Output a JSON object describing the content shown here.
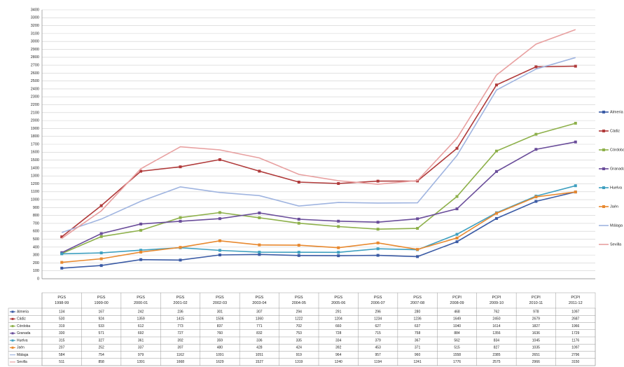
{
  "chart_data": {
    "type": "line",
    "categories": [
      "PGS 1998-99",
      "PGS 1999-00",
      "PGS 2000-01",
      "PGS 2001-02",
      "PGS 2002-03",
      "PGS 2003-04",
      "PGS 2004-05",
      "PGS 2005-06",
      "PGS 2006-07",
      "PGS 2007-08",
      "PCPI 2008-09",
      "PCPI 2009-10",
      "PCPI 2010-11",
      "PCPI 2011-12"
    ],
    "series": [
      {
        "name": "Almeria",
        "color": "#3b5ba5",
        "marker": true,
        "values": [
          134,
          167,
          242,
          236,
          301,
          307,
          294,
          291,
          296,
          280,
          468,
          762,
          978,
          1097
        ]
      },
      {
        "name": "Cádiz",
        "color": "#b03a3a",
        "marker": true,
        "values": [
          530,
          924,
          1359,
          1415,
          1506,
          1360,
          1222,
          1204,
          1234,
          1236,
          1649,
          2450,
          2679,
          2687
        ]
      },
      {
        "name": "Córdoba",
        "color": "#8db04a",
        "marker": true,
        "values": [
          319,
          533,
          612,
          773,
          837,
          771,
          702,
          660,
          627,
          637,
          1040,
          1614,
          1827,
          1966
        ]
      },
      {
        "name": "Granada",
        "color": "#6a4d9a",
        "marker": true,
        "values": [
          330,
          571,
          692,
          727,
          760,
          832,
          753,
          728,
          715,
          758,
          884,
          1356,
          1636,
          1729
        ]
      },
      {
        "name": "Huelva",
        "color": "#3fa0c0",
        "marker": true,
        "values": [
          315,
          327,
          361,
          392,
          359,
          336,
          335,
          334,
          379,
          367,
          562,
          834,
          1045,
          1176
        ]
      },
      {
        "name": "Jaén",
        "color": "#e8892f",
        "marker": true,
        "values": [
          207,
          252,
          337,
          397,
          480,
          428,
          424,
          392,
          453,
          371,
          515,
          827,
          1035,
          1097
        ]
      },
      {
        "name": "Málaga",
        "color": "#9fb4e0",
        "marker": false,
        "values": [
          584,
          754,
          979,
          1162,
          1091,
          1051,
          919,
          964,
          957,
          960,
          1558,
          2385,
          2651,
          2796
        ]
      },
      {
        "name": "Sevilla",
        "color": "#e8a0a0",
        "marker": false,
        "values": [
          511,
          858,
          1391,
          1668,
          1629,
          1527,
          1319,
          1240,
          1194,
          1241,
          1776,
          2575,
          2966,
          3150
        ]
      }
    ],
    "ylim": [
      0,
      3400
    ],
    "yticks": [
      0,
      100,
      200,
      300,
      400,
      500,
      600,
      700,
      800,
      900,
      1000,
      1100,
      1200,
      1300,
      1400,
      1500,
      1600,
      1700,
      1800,
      1900,
      2000,
      2100,
      2200,
      2300,
      2400,
      2500,
      2600,
      2700,
      2800,
      2900,
      3000,
      3100,
      3200,
      3300,
      3400
    ],
    "grid": true,
    "legend": "right",
    "data_table": true
  }
}
